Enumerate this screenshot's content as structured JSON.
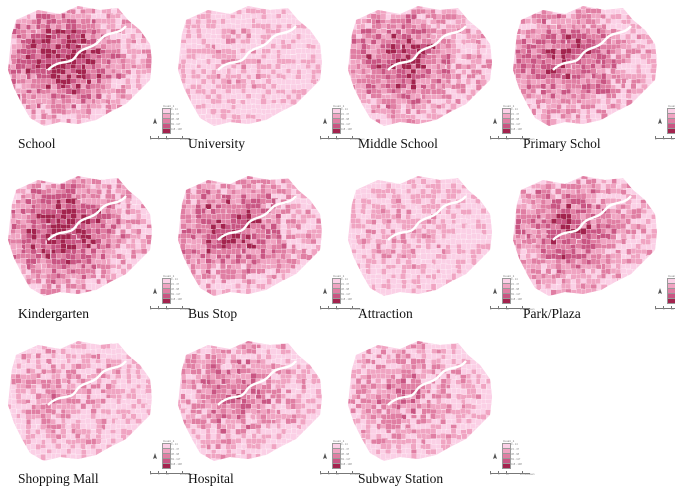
{
  "colors": {
    "ramp": [
      "#fbd0e6",
      "#f0a4c2",
      "#e07ea3",
      "#c95583",
      "#a3234e"
    ],
    "outline": "#ffffff"
  },
  "legend": {
    "title": "Count_1",
    "classes": [
      "0 - 14",
      "15 - 37",
      "38 - 68",
      "69 - 117",
      "118 - 198"
    ],
    "scale_labels": [
      "0",
      "5",
      "10",
      "20 Kilometers"
    ]
  },
  "panels": [
    {
      "label": "School",
      "intensity": 0.72
    },
    {
      "label": "University",
      "intensity": 0.18
    },
    {
      "label": "Middle School",
      "intensity": 0.66
    },
    {
      "label": "Primary Schol",
      "intensity": 0.62
    },
    {
      "label": "Kindergarten",
      "intensity": 0.74
    },
    {
      "label": "Bus Stop",
      "intensity": 0.64
    },
    {
      "label": "Attraction",
      "intensity": 0.22
    },
    {
      "label": "Park/Plaza",
      "intensity": 0.6
    },
    {
      "label": "Shopping Mall",
      "intensity": 0.3
    },
    {
      "label": "Hospital",
      "intensity": 0.45
    },
    {
      "label": "Subway Station",
      "intensity": 0.4
    }
  ]
}
